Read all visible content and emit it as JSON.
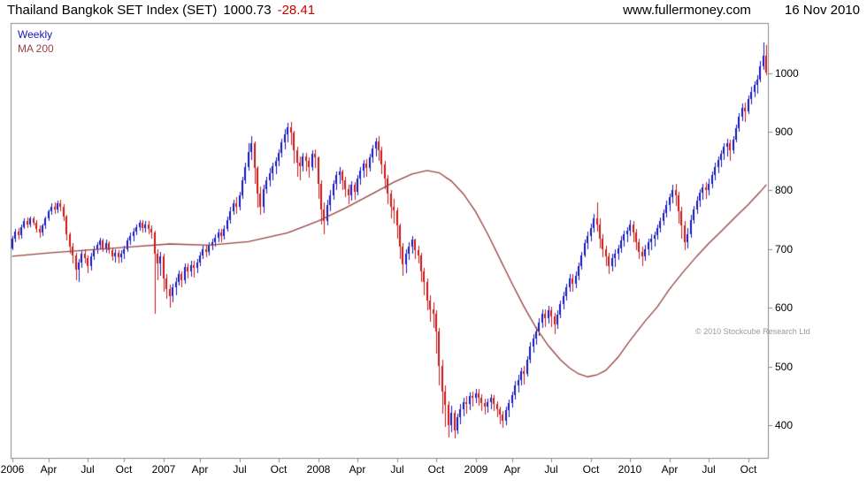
{
  "header": {
    "title": "Thailand Bangkok SET Index (SET)",
    "last": "1000.73",
    "change": "-28.41",
    "site": "www.fullermoney.com",
    "date": "16 Nov 2010"
  },
  "legend": {
    "timeframe": "Weekly",
    "ma": "MA 200"
  },
  "copyright": "© 2010 Stockcube Research Ltd",
  "colors": {
    "up": "#1414bE",
    "down": "#cc1414",
    "ma": "#994040",
    "change": "#cc0000",
    "frame": "#888888",
    "text": "#000000"
  },
  "chart_data": {
    "type": "candlestick",
    "title": "Thailand Bangkok SET Index (SET)",
    "timeframe": "weekly",
    "candle_format": "high,low,close (open = previous week close)",
    "first_open": 702,
    "y_ticks": [
      400,
      500,
      600,
      700,
      800,
      900,
      1000
    ],
    "y_range": [
      345,
      1085
    ],
    "x_ticks": [
      {
        "label": "2006",
        "week": 0
      },
      {
        "label": "Apr",
        "week": 12
      },
      {
        "label": "Jul",
        "week": 25
      },
      {
        "label": "Oct",
        "week": 37
      },
      {
        "label": "2007",
        "week": 50
      },
      {
        "label": "Apr",
        "week": 62
      },
      {
        "label": "Jul",
        "week": 75
      },
      {
        "label": "Oct",
        "week": 88
      },
      {
        "label": "2008",
        "week": 101
      },
      {
        "label": "Apr",
        "week": 114
      },
      {
        "label": "Jul",
        "week": 127
      },
      {
        "label": "Oct",
        "week": 140
      },
      {
        "label": "2009",
        "week": 153
      },
      {
        "label": "Apr",
        "week": 165
      },
      {
        "label": "Jul",
        "week": 178
      },
      {
        "label": "Oct",
        "week": 191
      },
      {
        "label": "2010",
        "week": 204
      },
      {
        "label": "Apr",
        "week": 217
      },
      {
        "label": "Jul",
        "week": 230
      },
      {
        "label": "Oct",
        "week": 243
      }
    ],
    "candles": [
      [
        722,
        698,
        718
      ],
      [
        734,
        712,
        730
      ],
      [
        736,
        716,
        724
      ],
      [
        742,
        718,
        738
      ],
      [
        752,
        734,
        748
      ],
      [
        754,
        736,
        742
      ],
      [
        756,
        738,
        752
      ],
      [
        756,
        740,
        745
      ],
      [
        750,
        728,
        735
      ],
      [
        740,
        720,
        728
      ],
      [
        744,
        722,
        740
      ],
      [
        756,
        734,
        752
      ],
      [
        768,
        748,
        764
      ],
      [
        778,
        758,
        772
      ],
      [
        780,
        760,
        768
      ],
      [
        782,
        762,
        778
      ],
      [
        784,
        764,
        772
      ],
      [
        776,
        748,
        755
      ],
      [
        758,
        715,
        725
      ],
      [
        728,
        692,
        705
      ],
      [
        710,
        676,
        690
      ],
      [
        694,
        648,
        665
      ],
      [
        684,
        645,
        678
      ],
      [
        698,
        668,
        692
      ],
      [
        700,
        676,
        685
      ],
      [
        690,
        660,
        672
      ],
      [
        694,
        664,
        688
      ],
      [
        706,
        682,
        700
      ],
      [
        712,
        692,
        708
      ],
      [
        720,
        700,
        715
      ],
      [
        718,
        696,
        702
      ],
      [
        716,
        694,
        710
      ],
      [
        714,
        692,
        698
      ],
      [
        702,
        680,
        688
      ],
      [
        700,
        678,
        694
      ],
      [
        698,
        676,
        686
      ],
      [
        698,
        678,
        692
      ],
      [
        706,
        684,
        700
      ],
      [
        720,
        696,
        715
      ],
      [
        728,
        708,
        722
      ],
      [
        736,
        714,
        730
      ],
      [
        742,
        724,
        738
      ],
      [
        750,
        732,
        745
      ],
      [
        750,
        728,
        736
      ],
      [
        748,
        728,
        742
      ],
      [
        748,
        726,
        735
      ],
      [
        740,
        718,
        728
      ],
      [
        732,
        590,
        692
      ],
      [
        700,
        648,
        676
      ],
      [
        696,
        655,
        688
      ],
      [
        692,
        628,
        650
      ],
      [
        658,
        615,
        632
      ],
      [
        640,
        600,
        620
      ],
      [
        642,
        610,
        635
      ],
      [
        652,
        622,
        645
      ],
      [
        664,
        638,
        658
      ],
      [
        662,
        636,
        648
      ],
      [
        676,
        642,
        670
      ],
      [
        676,
        650,
        662
      ],
      [
        680,
        654,
        673
      ],
      [
        680,
        652,
        668
      ],
      [
        684,
        660,
        678
      ],
      [
        696,
        672,
        690
      ],
      [
        706,
        684,
        700
      ],
      [
        708,
        686,
        695
      ],
      [
        712,
        690,
        706
      ],
      [
        718,
        698,
        712
      ],
      [
        726,
        704,
        720
      ],
      [
        734,
        712,
        728
      ],
      [
        734,
        712,
        722
      ],
      [
        740,
        716,
        735
      ],
      [
        756,
        730,
        750
      ],
      [
        772,
        744,
        765
      ],
      [
        784,
        758,
        778
      ],
      [
        788,
        760,
        772
      ],
      [
        798,
        766,
        792
      ],
      [
        824,
        786,
        818
      ],
      [
        848,
        812,
        840
      ],
      [
        880,
        834,
        865
      ],
      [
        892,
        852,
        880
      ],
      [
        884,
        812,
        838
      ],
      [
        842,
        770,
        795
      ],
      [
        806,
        758,
        772
      ],
      [
        810,
        762,
        802
      ],
      [
        824,
        794,
        818
      ],
      [
        838,
        806,
        830
      ],
      [
        848,
        818,
        842
      ],
      [
        856,
        828,
        850
      ],
      [
        870,
        842,
        864
      ],
      [
        888,
        856,
        882
      ],
      [
        904,
        870,
        896
      ],
      [
        915,
        882,
        908
      ],
      [
        916,
        878,
        898
      ],
      [
        902,
        846,
        868
      ],
      [
        874,
        824,
        848
      ],
      [
        858,
        818,
        842
      ],
      [
        864,
        832,
        858
      ],
      [
        864,
        832,
        850
      ],
      [
        856,
        822,
        840
      ],
      [
        868,
        834,
        862
      ],
      [
        870,
        838,
        856
      ],
      [
        858,
        786,
        812
      ],
      [
        818,
        742,
        768
      ],
      [
        780,
        726,
        748
      ],
      [
        784,
        740,
        775
      ],
      [
        800,
        764,
        792
      ],
      [
        818,
        784,
        812
      ],
      [
        832,
        800,
        826
      ],
      [
        840,
        812,
        832
      ],
      [
        836,
        800,
        818
      ],
      [
        824,
        788,
        802
      ],
      [
        810,
        776,
        792
      ],
      [
        816,
        782,
        810
      ],
      [
        814,
        784,
        798
      ],
      [
        826,
        792,
        820
      ],
      [
        840,
        810,
        834
      ],
      [
        852,
        822,
        846
      ],
      [
        854,
        824,
        838
      ],
      [
        862,
        832,
        856
      ],
      [
        878,
        848,
        872
      ],
      [
        890,
        858,
        884
      ],
      [
        892,
        850,
        868
      ],
      [
        874,
        828,
        845
      ],
      [
        850,
        802,
        820
      ],
      [
        826,
        776,
        795
      ],
      [
        800,
        752,
        772
      ],
      [
        786,
        744,
        766
      ],
      [
        770,
        718,
        740
      ],
      [
        744,
        684,
        705
      ],
      [
        710,
        655,
        675
      ],
      [
        700,
        660,
        692
      ],
      [
        712,
        682,
        705
      ],
      [
        722,
        692,
        716
      ],
      [
        718,
        684,
        698
      ],
      [
        706,
        676,
        690
      ],
      [
        694,
        644,
        662
      ],
      [
        668,
        622,
        644
      ],
      [
        650,
        596,
        612
      ],
      [
        622,
        576,
        598
      ],
      [
        610,
        566,
        590
      ],
      [
        596,
        522,
        560
      ],
      [
        566,
        468,
        502
      ],
      [
        512,
        420,
        458
      ],
      [
        468,
        398,
        435
      ],
      [
        442,
        380,
        400
      ],
      [
        434,
        388,
        422
      ],
      [
        426,
        378,
        392
      ],
      [
        420,
        386,
        414
      ],
      [
        436,
        402,
        428
      ],
      [
        448,
        416,
        440
      ],
      [
        450,
        420,
        436
      ],
      [
        456,
        426,
        450
      ],
      [
        458,
        432,
        448
      ],
      [
        462,
        438,
        455
      ],
      [
        462,
        434,
        448
      ],
      [
        454,
        424,
        438
      ],
      [
        446,
        418,
        432
      ],
      [
        446,
        422,
        440
      ],
      [
        454,
        428,
        448
      ],
      [
        452,
        424,
        436
      ],
      [
        442,
        414,
        428
      ],
      [
        432,
        402,
        418
      ],
      [
        424,
        396,
        408
      ],
      [
        432,
        400,
        426
      ],
      [
        444,
        414,
        438
      ],
      [
        458,
        430,
        452
      ],
      [
        476,
        444,
        468
      ],
      [
        486,
        456,
        478
      ],
      [
        498,
        468,
        492
      ],
      [
        502,
        470,
        488
      ],
      [
        518,
        484,
        512
      ],
      [
        542,
        506,
        535
      ],
      [
        556,
        524,
        548
      ],
      [
        568,
        538,
        560
      ],
      [
        582,
        552,
        575
      ],
      [
        598,
        566,
        590
      ],
      [
        598,
        568,
        582
      ],
      [
        604,
        574,
        596
      ],
      [
        602,
        568,
        585
      ],
      [
        592,
        556,
        572
      ],
      [
        596,
        564,
        588
      ],
      [
        612,
        582,
        606
      ],
      [
        628,
        598,
        620
      ],
      [
        642,
        612,
        636
      ],
      [
        658,
        628,
        650
      ],
      [
        658,
        628,
        642
      ],
      [
        662,
        634,
        655
      ],
      [
        678,
        648,
        672
      ],
      [
        696,
        666,
        690
      ],
      [
        716,
        686,
        710
      ],
      [
        730,
        700,
        722
      ],
      [
        744,
        714,
        736
      ],
      [
        760,
        728,
        752
      ],
      [
        780,
        730,
        742
      ],
      [
        752,
        702,
        718
      ],
      [
        726,
        686,
        700
      ],
      [
        706,
        672,
        688
      ],
      [
        694,
        658,
        672
      ],
      [
        692,
        662,
        685
      ],
      [
        700,
        670,
        692
      ],
      [
        708,
        682,
        702
      ],
      [
        722,
        694,
        715
      ],
      [
        732,
        704,
        725
      ],
      [
        738,
        712,
        732
      ],
      [
        750,
        722,
        742
      ],
      [
        748,
        712,
        728
      ],
      [
        734,
        698,
        712
      ],
      [
        718,
        684,
        696
      ],
      [
        704,
        672,
        688
      ],
      [
        708,
        680,
        700
      ],
      [
        718,
        690,
        712
      ],
      [
        726,
        698,
        718
      ],
      [
        730,
        704,
        724
      ],
      [
        742,
        716,
        736
      ],
      [
        754,
        728,
        748
      ],
      [
        768,
        740,
        762
      ],
      [
        782,
        754,
        775
      ],
      [
        794,
        764,
        788
      ],
      [
        810,
        778,
        800
      ],
      [
        812,
        774,
        792
      ],
      [
        798,
        744,
        765
      ],
      [
        772,
        718,
        740
      ],
      [
        748,
        698,
        712
      ],
      [
        736,
        702,
        726
      ],
      [
        758,
        720,
        750
      ],
      [
        774,
        744,
        768
      ],
      [
        790,
        760,
        782
      ],
      [
        802,
        772,
        796
      ],
      [
        812,
        784,
        805
      ],
      [
        814,
        786,
        800
      ],
      [
        820,
        792,
        812
      ],
      [
        832,
        804,
        826
      ],
      [
        848,
        818,
        840
      ],
      [
        858,
        830,
        852
      ],
      [
        868,
        840,
        862
      ],
      [
        880,
        852,
        874
      ],
      [
        888,
        858,
        880
      ],
      [
        886,
        850,
        868
      ],
      [
        892,
        862,
        886
      ],
      [
        912,
        882,
        906
      ],
      [
        932,
        900,
        925
      ],
      [
        948,
        918,
        940
      ],
      [
        950,
        916,
        935
      ],
      [
        962,
        930,
        956
      ],
      [
        976,
        946,
        968
      ],
      [
        986,
        958,
        980
      ],
      [
        996,
        964,
        988
      ],
      [
        1020,
        984,
        1012
      ],
      [
        1052,
        1005,
        1029.14
      ],
      [
        1048,
        996,
        1000.73
      ]
    ],
    "ma200": {
      "weeks": [
        0,
        13,
        26,
        39,
        52,
        65,
        78,
        91,
        101,
        110,
        118,
        126,
        132,
        137,
        141,
        145,
        149,
        153,
        157,
        161,
        165,
        169,
        173,
        177,
        181,
        184,
        187,
        190,
        193,
        196,
        200,
        204,
        209,
        213,
        217,
        221,
        226,
        230,
        234,
        239,
        243,
        247,
        249
      ],
      "values": [
        688,
        694,
        699,
        704,
        709,
        707,
        713,
        728,
        748,
        770,
        792,
        814,
        828,
        834,
        830,
        816,
        794,
        764,
        726,
        684,
        642,
        602,
        566,
        536,
        512,
        498,
        488,
        483,
        486,
        494,
        516,
        545,
        578,
        602,
        632,
        658,
        688,
        710,
        730,
        756,
        776,
        798,
        810
      ]
    }
  }
}
